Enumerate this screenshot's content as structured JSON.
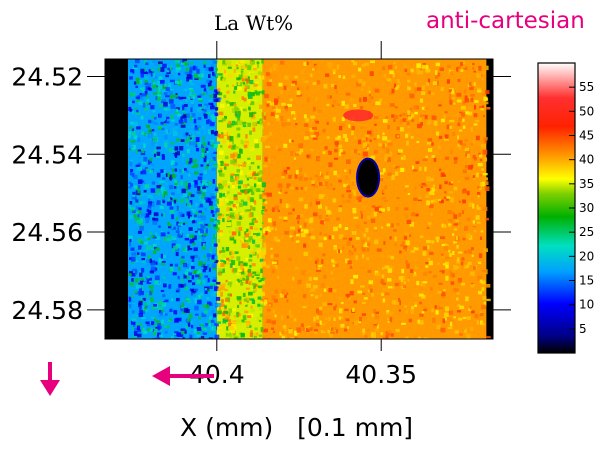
{
  "chart_data": {
    "type": "heatmap",
    "title": "La Wt%",
    "annotation": "anti-cartesian",
    "xlabel": "X (mm)   [0.1 mm]",
    "ylabel": "",
    "x_ticks": [
      "40.4",
      "40.35"
    ],
    "y_ticks": [
      "24.52",
      "24.54",
      "24.56",
      "24.58"
    ],
    "x_tick_values": [
      40.4,
      40.35
    ],
    "y_tick_values": [
      24.52,
      24.54,
      24.56,
      24.58
    ],
    "xlim": [
      40.434,
      40.316
    ],
    "ylim": [
      24.5155,
      24.5875
    ],
    "x_direction": "decreasing to the right",
    "y_direction": "increasing downward",
    "colorbar": {
      "ticks": [
        "5",
        "10",
        "15",
        "20",
        "25",
        "30",
        "35",
        "40",
        "45",
        "50",
        "55"
      ],
      "tick_values": [
        5,
        10,
        15,
        20,
        25,
        30,
        35,
        40,
        45,
        50,
        55
      ],
      "range": [
        0,
        60
      ],
      "colormap": "rainbow (black-blue-cyan-green-yellow-orange-red-white)"
    },
    "regions": [
      {
        "x_range": [
          40.434,
          40.427
        ],
        "value_wt_pct": 0,
        "description": "dark background"
      },
      {
        "x_range": [
          40.427,
          40.4
        ],
        "value_wt_pct": 17,
        "description": "mottled blue-cyan-green band"
      },
      {
        "x_range": [
          40.4,
          40.386
        ],
        "value_wt_pct": 35,
        "description": "mixed orange-green transition"
      },
      {
        "x_range": [
          40.386,
          40.318
        ],
        "value_wt_pct": 41,
        "description": "uniform orange-red"
      },
      {
        "x_range": [
          40.318,
          40.316
        ],
        "value_wt_pct": 0,
        "description": "dark edge"
      }
    ],
    "features": [
      {
        "label": "void",
        "x": 40.354,
        "y": 24.546,
        "value_wt_pct": 0
      },
      {
        "label": "La-rich inclusion",
        "x": 40.357,
        "y": 24.53,
        "value_wt_pct": 52
      }
    ],
    "arrows": [
      "down (y increases downward)",
      "left (x increases leftward)"
    ],
    "colors": {
      "annotation": "#e6007e",
      "arrow": "#e6007e",
      "axis": "#000000"
    }
  }
}
